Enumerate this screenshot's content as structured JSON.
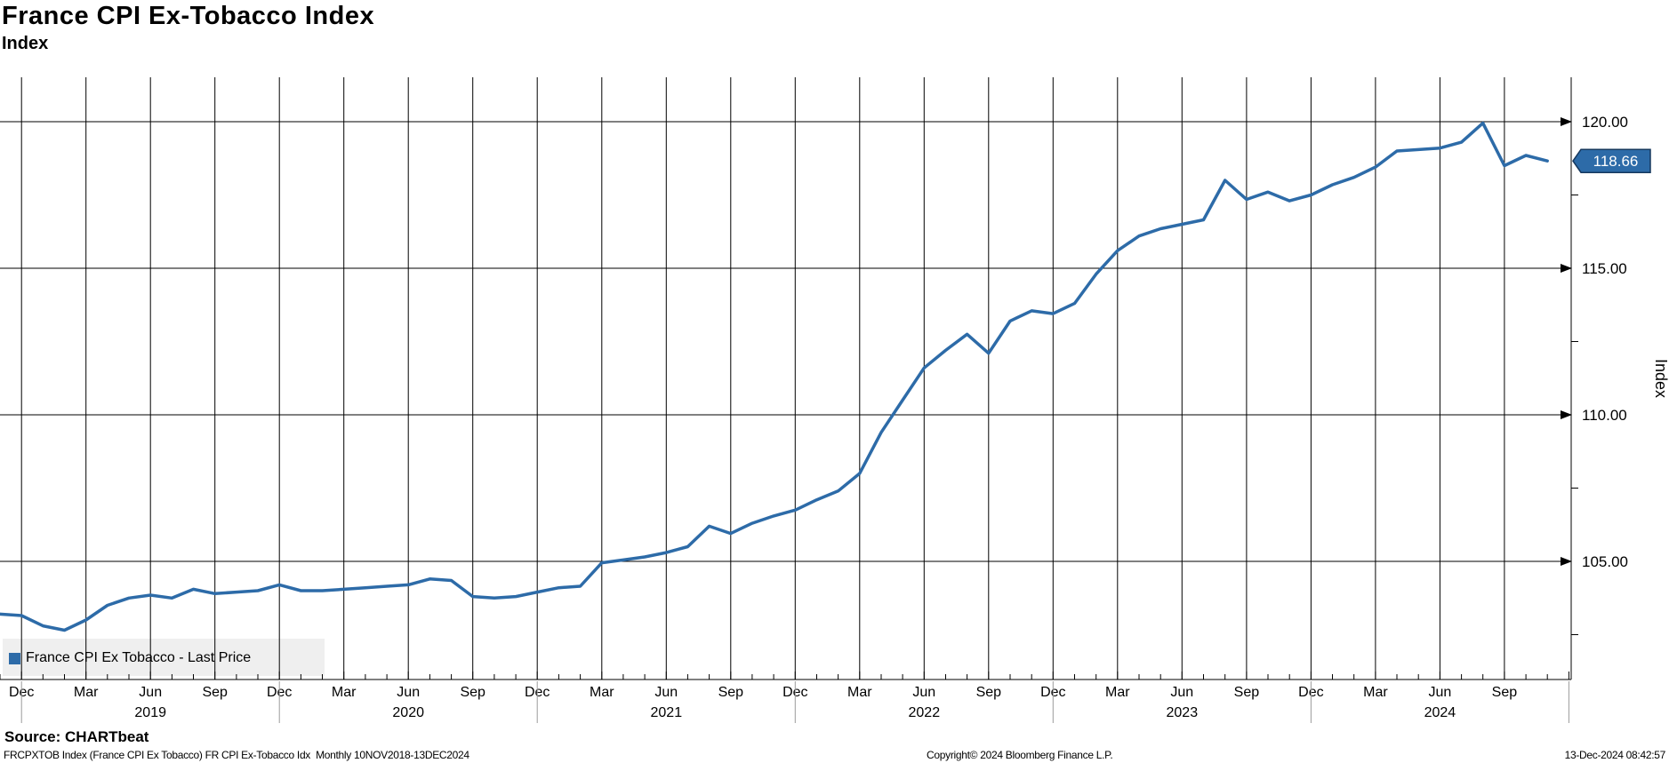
{
  "header": {
    "title": "France CPI Ex-Tobacco Index",
    "subtitle": "Index"
  },
  "legend": {
    "label": "France CPI Ex Tobacco - Last Price",
    "marker_color": "#2d6ba8",
    "background": "#efefef"
  },
  "source_line": "Source: CHARTbeat",
  "footer": {
    "left": "FRCPXTOB Index (France CPI Ex Tobacco) FR CPI Ex-Tobacco Idx  Monthly 10NOV2018-13DEC2024",
    "center": "Copyright© 2024 Bloomberg Finance L.P.",
    "right": "13-Dec-2024 08:42:57"
  },
  "chart_data": {
    "type": "line",
    "title": "France CPI Ex-Tobacco Index",
    "series_name": "France CPI Ex Tobacco - Last Price",
    "xlabel": "",
    "ylabel": "Index",
    "x_range_label": "10NOV2018-13DEC2024",
    "periodicity": "Monthly",
    "months": [
      "Nov 2018",
      "Dec 2018",
      "Jan 2019",
      "Feb 2019",
      "Mar 2019",
      "Apr 2019",
      "May 2019",
      "Jun 2019",
      "Jul 2019",
      "Aug 2019",
      "Sep 2019",
      "Oct 2019",
      "Nov 2019",
      "Dec 2019",
      "Jan 2020",
      "Feb 2020",
      "Mar 2020",
      "Apr 2020",
      "May 2020",
      "Jun 2020",
      "Jul 2020",
      "Aug 2020",
      "Sep 2020",
      "Oct 2020",
      "Nov 2020",
      "Dec 2020",
      "Jan 2021",
      "Feb 2021",
      "Mar 2021",
      "Apr 2021",
      "May 2021",
      "Jun 2021",
      "Jul 2021",
      "Aug 2021",
      "Sep 2021",
      "Oct 2021",
      "Nov 2021",
      "Dec 2021",
      "Jan 2022",
      "Feb 2022",
      "Mar 2022",
      "Apr 2022",
      "May 2022",
      "Jun 2022",
      "Jul 2022",
      "Aug 2022",
      "Sep 2022",
      "Oct 2022",
      "Nov 2022",
      "Dec 2022",
      "Jan 2023",
      "Feb 2023",
      "Mar 2023",
      "Apr 2023",
      "May 2023",
      "Jun 2023",
      "Jul 2023",
      "Aug 2023",
      "Sep 2023",
      "Oct 2023",
      "Nov 2023",
      "Dec 2023",
      "Jan 2024",
      "Feb 2024",
      "Mar 2024",
      "Apr 2024",
      "May 2024",
      "Jun 2024",
      "Jul 2024",
      "Aug 2024",
      "Sep 2024",
      "Oct 2024",
      "Nov 2024"
    ],
    "values": [
      103.2,
      103.15,
      102.8,
      102.65,
      103.0,
      103.5,
      103.75,
      103.85,
      103.75,
      104.05,
      103.9,
      103.95,
      104.0,
      104.2,
      104.0,
      104.0,
      104.05,
      104.1,
      104.15,
      104.2,
      104.4,
      104.35,
      103.8,
      103.75,
      103.8,
      103.95,
      104.1,
      104.15,
      104.95,
      105.05,
      105.15,
      105.3,
      105.5,
      106.2,
      105.95,
      106.3,
      106.55,
      106.75,
      107.1,
      107.4,
      108.0,
      109.4,
      110.5,
      111.6,
      112.2,
      112.75,
      112.1,
      113.2,
      113.55,
      113.45,
      113.8,
      114.8,
      115.6,
      116.1,
      116.35,
      116.5,
      116.65,
      118.0,
      117.35,
      117.6,
      117.3,
      117.5,
      117.85,
      118.1,
      118.45,
      119.0,
      119.05,
      119.1,
      119.3,
      119.95,
      118.5,
      118.85,
      118.66
    ],
    "y_ticks": [
      105,
      110,
      115,
      120
    ],
    "y_tick_labels": [
      "105.00",
      "110.00",
      "115.00",
      "120.00"
    ],
    "y_minor_ticks": [
      102.5,
      107.5,
      112.5,
      117.5
    ],
    "ylim": [
      100.9,
      121.6
    ],
    "grid": "on",
    "grid_color": "#000000",
    "year_separator_color": "#9b9b9b",
    "line_color": "#2d6ba8",
    "legend_position": "bottom-left",
    "last_value_box": {
      "text": "118.66",
      "bg": "#2d6ba8",
      "border": "#16385e",
      "fg": "#ffffff"
    }
  }
}
